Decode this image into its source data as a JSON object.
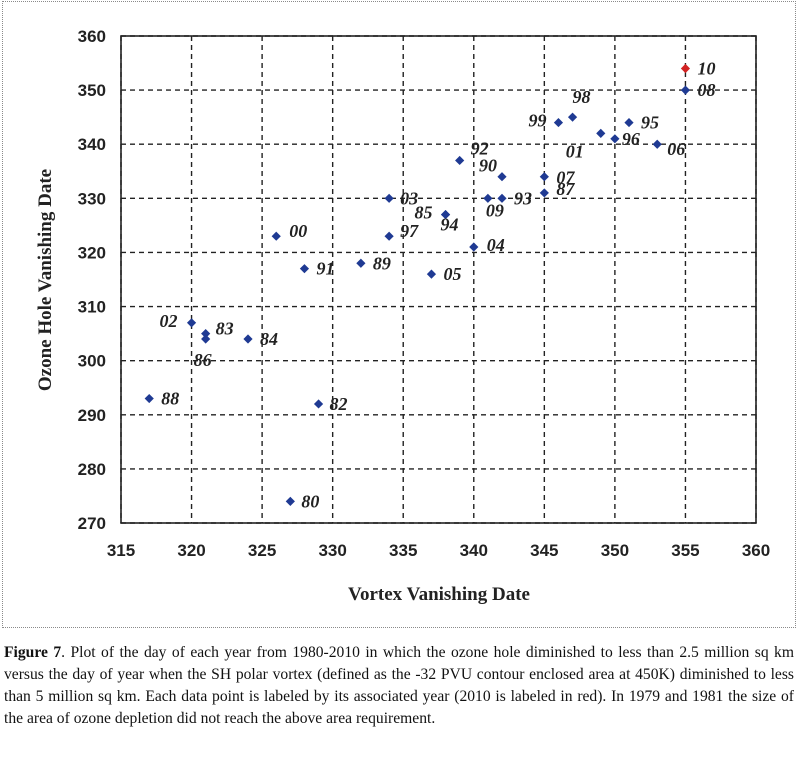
{
  "chart_data": {
    "type": "scatter",
    "xlabel": "Vortex Vanishing Date",
    "ylabel": "Ozone Hole Vanishing Date",
    "xlim": [
      315,
      360
    ],
    "ylim": [
      270,
      360
    ],
    "xticks": [
      315,
      320,
      325,
      330,
      335,
      340,
      345,
      350,
      355,
      360
    ],
    "yticks": [
      270,
      280,
      290,
      300,
      310,
      320,
      330,
      340,
      350,
      360
    ],
    "grid": true,
    "marker_color": "#1f3a93",
    "highlight_color": "#d22222",
    "points": [
      {
        "label": "80",
        "x": 327,
        "y": 274
      },
      {
        "label": "82",
        "x": 329,
        "y": 292
      },
      {
        "label": "83",
        "x": 321,
        "y": 305
      },
      {
        "label": "84",
        "x": 324,
        "y": 304
      },
      {
        "label": "85",
        "x": 338,
        "y": 327
      },
      {
        "label": "86",
        "x": 321,
        "y": 304
      },
      {
        "label": "87",
        "x": 345,
        "y": 331
      },
      {
        "label": "88",
        "x": 317,
        "y": 293
      },
      {
        "label": "89",
        "x": 332,
        "y": 318
      },
      {
        "label": "90",
        "x": 342,
        "y": 334
      },
      {
        "label": "91",
        "x": 328,
        "y": 317
      },
      {
        "label": "92",
        "x": 339,
        "y": 337
      },
      {
        "label": "93",
        "x": 342,
        "y": 330
      },
      {
        "label": "94",
        "x": 338,
        "y": 327
      },
      {
        "label": "95",
        "x": 351,
        "y": 344
      },
      {
        "label": "96",
        "x": 350,
        "y": 341
      },
      {
        "label": "97",
        "x": 334,
        "y": 323
      },
      {
        "label": "98",
        "x": 347,
        "y": 345
      },
      {
        "label": "99",
        "x": 346,
        "y": 344
      },
      {
        "label": "00",
        "x": 326,
        "y": 323
      },
      {
        "label": "01",
        "x": 349,
        "y": 342
      },
      {
        "label": "02",
        "x": 320,
        "y": 307
      },
      {
        "label": "03",
        "x": 334,
        "y": 330
      },
      {
        "label": "04",
        "x": 340,
        "y": 321
      },
      {
        "label": "05",
        "x": 337,
        "y": 316
      },
      {
        "label": "06",
        "x": 353,
        "y": 340
      },
      {
        "label": "07",
        "x": 345,
        "y": 334
      },
      {
        "label": "08",
        "x": 355,
        "y": 350
      },
      {
        "label": "09",
        "x": 341,
        "y": 330
      },
      {
        "label": "10",
        "x": 355,
        "y": 354,
        "highlight": true
      }
    ]
  },
  "caption": {
    "figure_label": "Figure 7",
    "text": ". Plot of the day of each year from 1980-2010 in which the ozone hole diminished to less than 2.5 million sq km versus the day of year when the SH polar vortex (defined as the -32 PVU contour enclosed area at 450K) diminished to less than 5 million sq km. Each data point is labeled by its associated year (2010 is labeled in red).  In 1979 and 1981 the size of the area of ozone depletion did not reach the above area requirement."
  }
}
